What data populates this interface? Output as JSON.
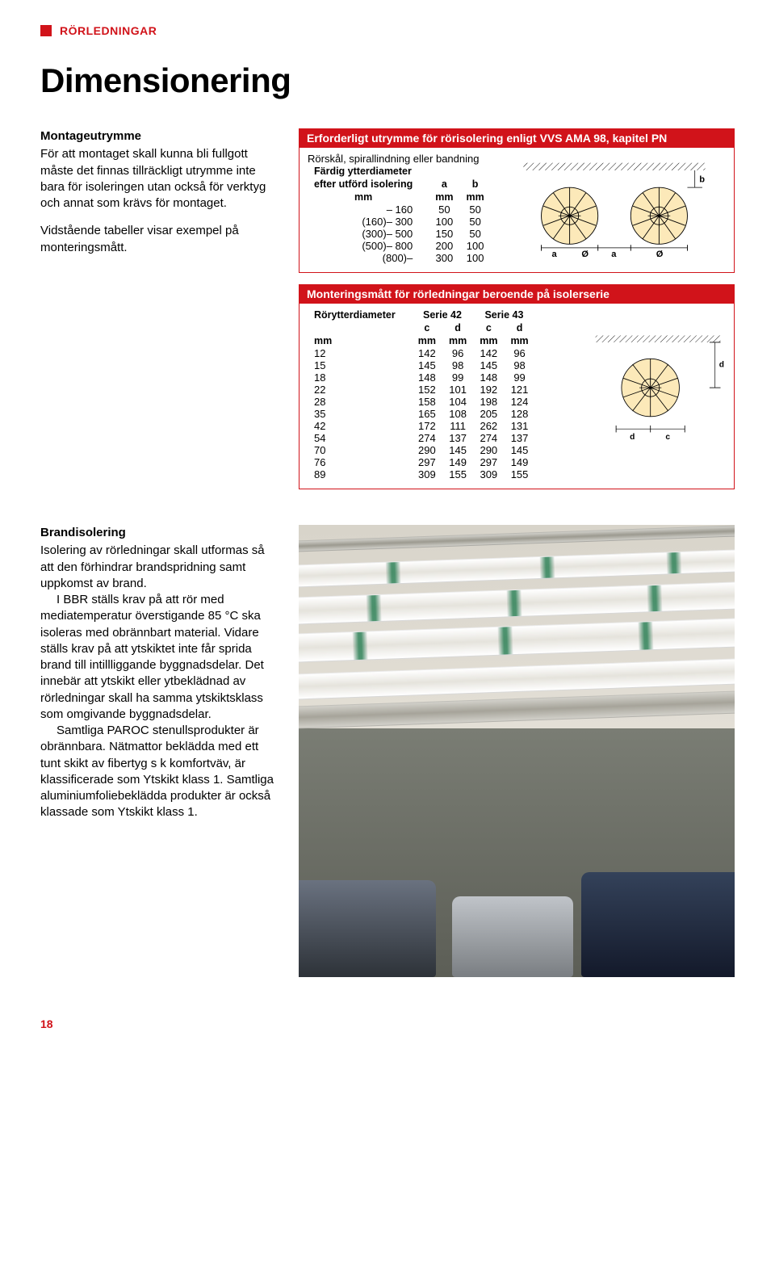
{
  "chapter": "RÖRLEDNINGAR",
  "title": "Dimensionering",
  "intro": {
    "heading": "Montageutrymme",
    "p1": "För att montaget skall kunna bli full­gott måste det finnas tillräckligt ut­rymme inte bara för isoleringen utan också för verktyg och annat som krävs för montaget.",
    "p2": "Vidstående tabeller visar exempel på monteringsmått."
  },
  "table1": {
    "banner": "Erforderligt utrymme för rörisolering enligt VVS AMA 98, kapitel PN",
    "subheading": "Rörskål, spirallindning eller bandning",
    "col1_label1": "Färdig ytterdiameter",
    "col1_label2": "efter utförd isolering",
    "unit": "mm",
    "col_a": "a",
    "col_b": "b",
    "rows": [
      {
        "range": "– 160",
        "a": "50",
        "b": "50"
      },
      {
        "range": "(160)– 300",
        "a": "100",
        "b": "50"
      },
      {
        "range": "(300)– 500",
        "a": "150",
        "b": "50"
      },
      {
        "range": "(500)– 800",
        "a": "200",
        "b": "100"
      },
      {
        "range": "(800)–",
        "a": "300",
        "b": "100"
      }
    ],
    "diagram": {
      "labels": {
        "a": "a",
        "b": "b",
        "d": "Ø"
      }
    }
  },
  "table2": {
    "banner": "Monteringsmått för rörledningar beroende på isolerserie",
    "col_label": "Rörytter­diameter",
    "serie42": "Serie 42",
    "serie43": "Serie 43",
    "c": "c",
    "d": "d",
    "unit": "mm",
    "rows": [
      {
        "dia": "12",
        "c42": "142",
        "d42": "96",
        "c43": "142",
        "d43": "96"
      },
      {
        "dia": "15",
        "c42": "145",
        "d42": "98",
        "c43": "145",
        "d43": "98"
      },
      {
        "dia": "18",
        "c42": "148",
        "d42": "99",
        "c43": "148",
        "d43": "99"
      },
      {
        "dia": "22",
        "c42": "152",
        "d42": "101",
        "c43": "192",
        "d43": "121"
      },
      {
        "dia": "28",
        "c42": "158",
        "d42": "104",
        "c43": "198",
        "d43": "124"
      },
      {
        "dia": "35",
        "c42": "165",
        "d42": "108",
        "c43": "205",
        "d43": "128"
      },
      {
        "dia": "42",
        "c42": "172",
        "d42": "111",
        "c43": "262",
        "d43": "131"
      },
      {
        "dia": "54",
        "c42": "274",
        "d42": "137",
        "c43": "274",
        "d43": "137"
      },
      {
        "dia": "70",
        "c42": "290",
        "d42": "145",
        "c43": "290",
        "d43": "145"
      },
      {
        "dia": "76",
        "c42": "297",
        "d42": "149",
        "c43": "297",
        "d43": "149"
      },
      {
        "dia": "89",
        "c42": "309",
        "d42": "155",
        "c43": "309",
        "d43": "155"
      }
    ],
    "diagram": {
      "labels": {
        "c": "c",
        "d": "d"
      }
    }
  },
  "section2": {
    "heading": "Brandisolering",
    "p1": "Isolering av rörledningar skall utformas så att den förhindrar brandspridning samt uppkomst av brand.",
    "p2": "I BBR ställs krav på att rör med mediatemperatur överstigande 85 °C ska isoleras med obrännbart material. Vidare ställs krav på att ytskiktet in­te får sprida brand till intillliggande byggnadsdelar. Det innebär att ytskikt eller ytbeklädnad av rörledningar skall ha samma ytskiktsklass som omgivan­de byggnadsdelar.",
    "p3": "Samtliga PAROC stenullsproduk­ter är obrännbara. Nätmattor beklädda med ett tunt skikt av fibertyg s k kom­fortväv, är klassificerade som Ytskikt klass 1. Samtliga aluminiumfoliebe­klädda produkter är också klassade som Ytskikt klass 1."
  },
  "page_number": "18",
  "colors": {
    "brand_red": "#d1131a"
  }
}
